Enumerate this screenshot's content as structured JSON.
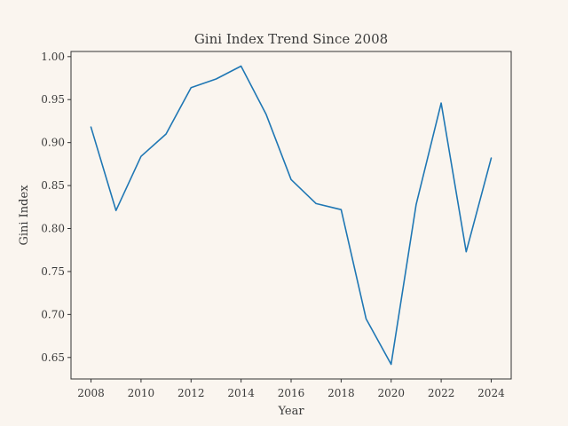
{
  "chart_data": {
    "type": "line",
    "title": "Gini Index Trend Since 2008",
    "xlabel": "Year",
    "ylabel": "Gini Index",
    "x": [
      2008,
      2009,
      2010,
      2011,
      2012,
      2013,
      2014,
      2015,
      2016,
      2017,
      2018,
      2019,
      2020,
      2021,
      2022,
      2023,
      2024
    ],
    "series": [
      {
        "values": [
          0.918,
          0.821,
          0.884,
          0.91,
          0.964,
          0.974,
          0.989,
          0.933,
          0.857,
          0.829,
          0.822,
          0.695,
          0.642,
          0.828,
          0.946,
          0.773,
          0.882
        ],
        "color": "#1f77b4"
      }
    ],
    "xlim": [
      2007.2,
      2024.8
    ],
    "ylim": [
      0.625,
      1.006
    ],
    "xticks": [
      "2008",
      "2010",
      "2012",
      "2014",
      "2016",
      "2018",
      "2020",
      "2022",
      "2024"
    ],
    "yticks": [
      "0.65",
      "0.70",
      "0.75",
      "0.80",
      "0.85",
      "0.90",
      "0.95",
      "1.00"
    ],
    "grid": false,
    "legend": false
  }
}
